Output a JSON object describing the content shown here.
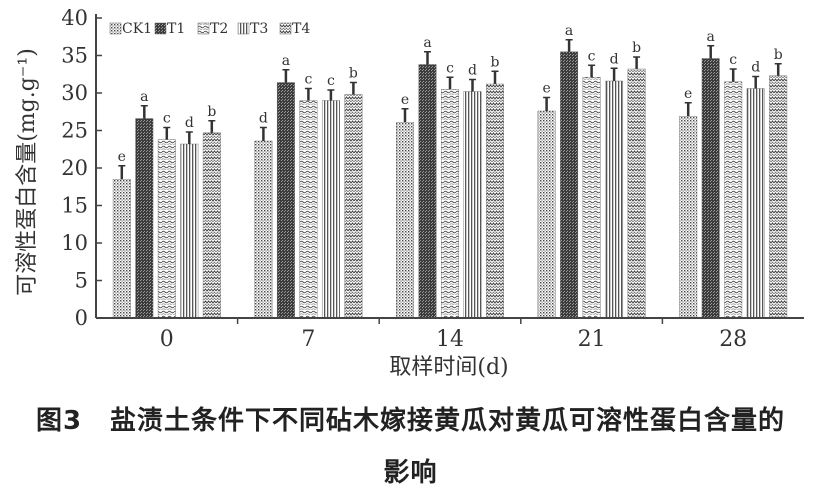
{
  "figure": {
    "number": "图3",
    "caption_line1": "盐渍土条件下不同砧木嫁接黄瓜对黄瓜可溶性蛋白含量的",
    "caption_line2": "影响"
  },
  "chart_data": {
    "type": "bar",
    "xlabel": "取样时间(d)",
    "ylabel": "可溶性蛋白含量(mg.g⁻¹)",
    "ylim": [
      0,
      40
    ],
    "yticks": [
      0,
      5,
      10,
      15,
      20,
      25,
      30,
      35,
      40
    ],
    "categories": [
      "0",
      "7",
      "14",
      "21",
      "28"
    ],
    "legend_position": "top-left",
    "series": [
      {
        "name": "CK1",
        "pattern": "dots",
        "values": [
          18.5,
          23.6,
          26.1,
          27.6,
          26.9
        ],
        "errors": [
          1.8,
          1.8,
          1.8,
          1.8,
          1.8
        ],
        "letters": [
          "e",
          "d",
          "e",
          "e",
          "e"
        ]
      },
      {
        "name": "T1",
        "pattern": "dense",
        "values": [
          26.6,
          31.4,
          33.8,
          35.5,
          34.6
        ],
        "errors": [
          1.7,
          1.7,
          1.7,
          1.6,
          1.7
        ],
        "letters": [
          "a",
          "a",
          "a",
          "a",
          "a"
        ]
      },
      {
        "name": "T2",
        "pattern": "wavy",
        "values": [
          23.8,
          29.0,
          30.5,
          32.1,
          31.5
        ],
        "errors": [
          1.6,
          1.6,
          1.6,
          1.6,
          1.7
        ],
        "letters": [
          "c",
          "c",
          "c",
          "c",
          "c"
        ]
      },
      {
        "name": "T3",
        "pattern": "vlines",
        "values": [
          23.2,
          29.0,
          30.2,
          31.6,
          30.6
        ],
        "errors": [
          1.6,
          1.4,
          1.6,
          1.7,
          1.6
        ],
        "letters": [
          "d",
          "c",
          "d",
          "d",
          "d"
        ]
      },
      {
        "name": "T4",
        "pattern": "zigzag",
        "values": [
          24.7,
          29.8,
          31.2,
          33.2,
          32.3
        ],
        "errors": [
          1.6,
          1.6,
          1.7,
          1.6,
          1.6
        ],
        "letters": [
          "b",
          "b",
          "b",
          "b",
          "b"
        ]
      }
    ]
  }
}
